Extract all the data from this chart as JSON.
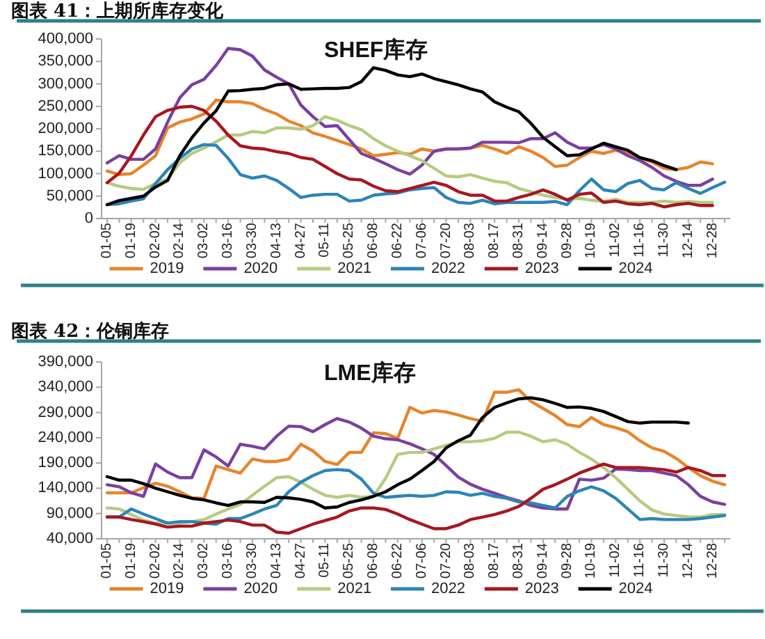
{
  "chart_data": [
    {
      "type": "line",
      "title": "图表 41：上期所库存变化",
      "subtitle": "SHEF库存",
      "categories": [
        "01-05",
        null,
        "01-19",
        null,
        "02-02",
        null,
        "02-14",
        null,
        "03-02",
        null,
        "03-16",
        null,
        "03-30",
        null,
        "04-13",
        null,
        "04-27",
        null,
        "05-11",
        null,
        "05-25",
        null,
        "06-08",
        null,
        "06-22",
        null,
        "07-06",
        null,
        "07-20",
        null,
        "08-03",
        null,
        "08-17",
        null,
        "08-31",
        null,
        "09-14",
        null,
        "09-28",
        null,
        "10-19",
        null,
        "11-02",
        null,
        "11-16",
        null,
        "11-30",
        null,
        "12-14",
        null,
        "12-28",
        null
      ],
      "series": [
        {
          "name": "2019",
          "color": "#e8832a",
          "values": [
            106000,
            98000,
            100000,
            119000,
            140000,
            202000,
            215000,
            222000,
            233000,
            264000,
            260000,
            260000,
            256000,
            243000,
            233000,
            217000,
            207000,
            191000,
            183000,
            174000,
            165000,
            155000,
            140000,
            143000,
            147000,
            143000,
            155000,
            150000,
            155000,
            155000,
            157000,
            163000,
            155000,
            145000,
            160000,
            150000,
            136000,
            116000,
            119000,
            136000,
            150000,
            145000,
            152000,
            145000,
            134000,
            126000,
            112000,
            109000,
            114000,
            126000,
            122000,
            null
          ]
        },
        {
          "name": "2020",
          "color": "#7b3fa0",
          "values": [
            124000,
            140000,
            132000,
            132000,
            155000,
            215000,
            269000,
            298000,
            310000,
            341000,
            379000,
            376000,
            362000,
            331000,
            315000,
            300000,
            253000,
            227000,
            205000,
            207000,
            176000,
            145000,
            134000,
            122000,
            109000,
            99000,
            119000,
            150000,
            155000,
            155000,
            157000,
            170000,
            170000,
            170000,
            169000,
            178000,
            178000,
            191000,
            170000,
            157000,
            157000,
            165000,
            155000,
            140000,
            129000,
            114000,
            95000,
            83000,
            74000,
            74000,
            88000,
            null
          ]
        },
        {
          "name": "2021",
          "color": "#b5cb80",
          "values": [
            80000,
            72000,
            67000,
            65000,
            78000,
            88000,
            124000,
            145000,
            157000,
            171000,
            186000,
            186000,
            194000,
            191000,
            202000,
            202000,
            199000,
            207000,
            227000,
            219000,
            207000,
            198000,
            178000,
            162000,
            150000,
            140000,
            129000,
            112000,
            95000,
            93000,
            98000,
            90000,
            83000,
            80000,
            67000,
            60000,
            52000,
            47000,
            43000,
            45000,
            41000,
            38000,
            43000,
            36000,
            36000,
            36000,
            39000,
            36000,
            38000,
            36000,
            36000,
            null
          ]
        },
        {
          "name": "2022",
          "color": "#2b84b8",
          "values": [
            31000,
            33000,
            39000,
            44000,
            78000,
            109000,
            134000,
            155000,
            165000,
            163000,
            134000,
            98000,
            90000,
            95000,
            85000,
            67000,
            47000,
            52000,
            54000,
            54000,
            39000,
            41000,
            52000,
            55000,
            57000,
            64000,
            67000,
            69000,
            47000,
            36000,
            34000,
            41000,
            33000,
            36000,
            36000,
            36000,
            36000,
            38000,
            31000,
            62000,
            88000,
            64000,
            60000,
            78000,
            85000,
            67000,
            64000,
            80000,
            67000,
            56000,
            69000,
            81000
          ]
        },
        {
          "name": "2023",
          "color": "#a8161e",
          "values": [
            80000,
            101000,
            140000,
            186000,
            227000,
            241000,
            248000,
            250000,
            241000,
            217000,
            186000,
            162000,
            157000,
            155000,
            149000,
            145000,
            136000,
            132000,
            116000,
            100000,
            88000,
            86000,
            72000,
            62000,
            60000,
            67000,
            74000,
            81000,
            74000,
            60000,
            52000,
            52000,
            39000,
            39000,
            47000,
            54000,
            64000,
            54000,
            41000,
            54000,
            57000,
            36000,
            39000,
            33000,
            31000,
            34000,
            26000,
            31000,
            34000,
            29000,
            29000,
            null
          ]
        },
        {
          "name": "2024",
          "color": "#000000",
          "values": [
            31000,
            40000,
            45000,
            50000,
            70000,
            85000,
            140000,
            180000,
            213000,
            240000,
            284000,
            285000,
            288000,
            290000,
            298000,
            300000,
            288000,
            289000,
            290000,
            290000,
            292000,
            305000,
            336000,
            330000,
            320000,
            316000,
            322000,
            312000,
            305000,
            298000,
            289000,
            282000,
            260000,
            248000,
            238000,
            212000,
            181000,
            160000,
            140000,
            142000,
            155000,
            168000,
            160000,
            152000,
            136000,
            129000,
            118000,
            109000,
            null,
            null,
            null,
            null
          ]
        }
      ],
      "ylim": [
        0,
        400000
      ],
      "yticks": [
        0,
        {
          "value": 50000,
          "label": "50,000"
        },
        {
          "value": 100000,
          "label": "100,000"
        },
        {
          "value": 150000,
          "label": "150,000"
        },
        {
          "value": 200000,
          "label": "200,000"
        },
        {
          "value": 250000,
          "label": "250,000"
        },
        {
          "value": 300000,
          "label": "300,000"
        },
        {
          "value": 350000,
          "label": "350,000"
        },
        {
          "value": 400000,
          "label": "400,000"
        }
      ],
      "legend": "bottom"
    },
    {
      "type": "line",
      "title": "图表 42：伦铜库存",
      "subtitle": "LME库存",
      "categories": [
        "01-05",
        null,
        "01-19",
        null,
        "02-02",
        null,
        "02-14",
        null,
        "03-02",
        null,
        "03-16",
        null,
        "03-30",
        null,
        "04-13",
        null,
        "04-27",
        null,
        "05-11",
        null,
        "05-25",
        null,
        "06-08",
        null,
        "06-22",
        null,
        "07-06",
        null,
        "07-20",
        null,
        "08-03",
        null,
        "08-17",
        null,
        "08-31",
        null,
        "09-14",
        null,
        "09-28",
        null,
        "10-19",
        null,
        "11-02",
        null,
        "11-16",
        null,
        "11-30",
        null,
        "12-14",
        null,
        "12-28",
        null
      ],
      "series": [
        {
          "name": "2019",
          "color": "#e8832a",
          "values": [
            131000,
            131000,
            131000,
            141000,
            150000,
            144000,
            133000,
            121000,
            120000,
            184000,
            177000,
            170000,
            198000,
            193000,
            193000,
            198000,
            227000,
            214000,
            193000,
            187000,
            211000,
            211000,
            250000,
            248000,
            239000,
            300000,
            289000,
            294000,
            291000,
            285000,
            278000,
            273000,
            330000,
            330000,
            335000,
            312000,
            298000,
            284000,
            266000,
            262000,
            280000,
            266000,
            260000,
            252000,
            234000,
            220000,
            213000,
            199000,
            181000,
            165000,
            154000,
            147000
          ]
        },
        {
          "name": "2020",
          "color": "#7b3fa0",
          "values": [
            147000,
            143000,
            131000,
            124000,
            188000,
            172000,
            161000,
            161000,
            216000,
            202000,
            184000,
            227000,
            223000,
            218000,
            243000,
            263000,
            262000,
            252000,
            266000,
            278000,
            271000,
            259000,
            243000,
            238000,
            236000,
            228000,
            218000,
            207000,
            185000,
            162000,
            148000,
            138000,
            130000,
            122000,
            115000,
            106000,
            101000,
            99000,
            99000,
            158000,
            156000,
            160000,
            178000,
            177000,
            175000,
            175000,
            170000,
            165000,
            147000,
            124000,
            113000,
            108000
          ]
        },
        {
          "name": "2021",
          "color": "#b5cb80",
          "values": [
            101000,
            99000,
            88000,
            77000,
            71000,
            71000,
            71000,
            74000,
            78000,
            89000,
            99000,
            108000,
            126000,
            144000,
            161000,
            163000,
            152000,
            138000,
            126000,
            122000,
            126000,
            122000,
            124000,
            160000,
            207000,
            211000,
            211000,
            218000,
            225000,
            232000,
            232000,
            234000,
            239000,
            251000,
            251000,
            243000,
            232000,
            236000,
            227000,
            211000,
            198000,
            181000,
            161000,
            138000,
            115000,
            97000,
            89000,
            86000,
            83000,
            83000,
            88000,
            88000
          ]
        },
        {
          "name": "2022",
          "color": "#2b84b8",
          "values": [
            83000,
            83000,
            99000,
            89000,
            80000,
            71000,
            74000,
            74000,
            71000,
            69000,
            80000,
            80000,
            89000,
            99000,
            106000,
            133000,
            152000,
            165000,
            175000,
            177000,
            175000,
            158000,
            130000,
            122000,
            124000,
            126000,
            124000,
            126000,
            133000,
            132000,
            126000,
            130000,
            124000,
            120000,
            113000,
            111000,
            106000,
            101000,
            124000,
            135000,
            143000,
            135000,
            120000,
            99000,
            78000,
            80000,
            78000,
            78000,
            78000,
            80000,
            83000,
            86000
          ]
        },
        {
          "name": "2023",
          "color": "#a8161e",
          "values": [
            83000,
            83000,
            78000,
            74000,
            69000,
            63000,
            65000,
            65000,
            71000,
            74000,
            77000,
            74000,
            67000,
            67000,
            53000,
            51000,
            60000,
            69000,
            76000,
            83000,
            95000,
            101000,
            101000,
            98000,
            89000,
            78000,
            69000,
            60000,
            60000,
            67000,
            78000,
            83000,
            88000,
            95000,
            104000,
            120000,
            138000,
            147000,
            158000,
            170000,
            179000,
            188000,
            181000,
            181000,
            181000,
            179000,
            177000,
            172000,
            181000,
            175000,
            165000,
            165000
          ]
        },
        {
          "name": "2024",
          "color": "#000000",
          "values": [
            163000,
            156000,
            156000,
            149000,
            140000,
            133000,
            126000,
            120000,
            117000,
            111000,
            106000,
            113000,
            113000,
            112000,
            122000,
            121000,
            118000,
            113000,
            101000,
            103000,
            112000,
            117000,
            124000,
            133000,
            147000,
            158000,
            175000,
            193000,
            220000,
            234000,
            245000,
            280000,
            300000,
            309000,
            317000,
            319000,
            315000,
            308000,
            300000,
            301000,
            298000,
            292000,
            282000,
            272000,
            269000,
            271000,
            271000,
            271000,
            269000,
            null,
            null,
            null
          ]
        }
      ],
      "ylim": [
        40000,
        390000
      ],
      "yticks": [
        {
          "value": 40000,
          "label": "40,000"
        },
        {
          "value": 90000,
          "label": "90,000"
        },
        {
          "value": 140000,
          "label": "140,000"
        },
        {
          "value": 190000,
          "label": "190,000"
        },
        {
          "value": 240000,
          "label": "240,000"
        },
        {
          "value": 290000,
          "label": "290,000"
        },
        {
          "value": 340000,
          "label": "340,000"
        },
        {
          "value": 390000,
          "label": "390,000"
        }
      ],
      "legend": "bottom"
    }
  ]
}
